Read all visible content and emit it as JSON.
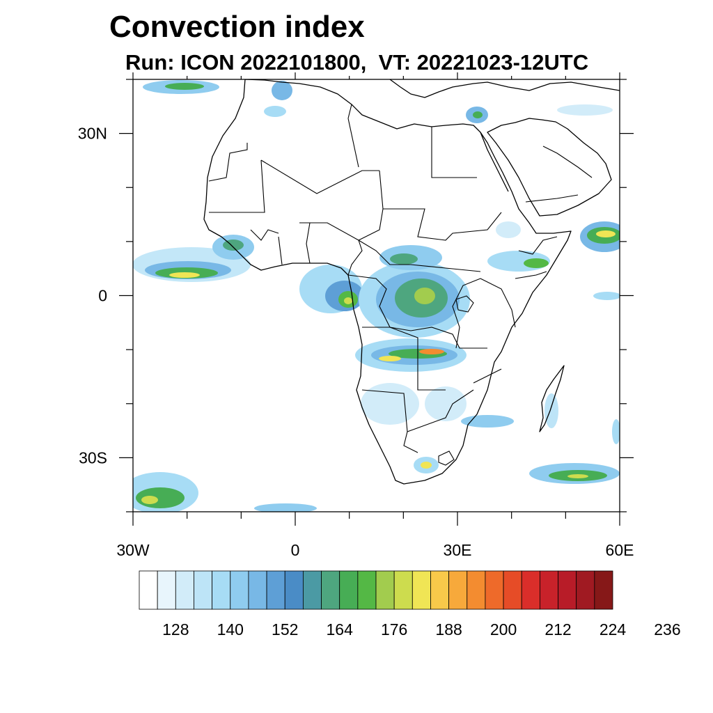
{
  "title": "Convection index",
  "subtitle": {
    "run_label": "Run: ICON 2022101800,",
    "vt_label": "VT: 20221023-12UTC"
  },
  "map": {
    "lon_range": [
      -30,
      60
    ],
    "lat_range": [
      -40,
      40
    ],
    "lon_ticks": [
      {
        "value": -30,
        "label": "30W"
      },
      {
        "value": 0,
        "label": "0"
      },
      {
        "value": 30,
        "label": "30E"
      },
      {
        "value": 60,
        "label": "60E"
      }
    ],
    "lat_ticks": [
      {
        "value": 30,
        "label": "30N"
      },
      {
        "value": 0,
        "label": "0"
      },
      {
        "value": -30,
        "label": "30S"
      }
    ]
  },
  "colorbar": {
    "colors": [
      "#ffffff",
      "#e8f5fc",
      "#d2ecf9",
      "#bde4f7",
      "#a7dcf5",
      "#8fccef",
      "#78b8e6",
      "#5e9fd6",
      "#4a8cc6",
      "#4b9aa4",
      "#4ea67f",
      "#47ad55",
      "#54b845",
      "#a2cc4e",
      "#cddc4e",
      "#f0e555",
      "#f8c94a",
      "#f7a93b",
      "#f38c30",
      "#ee6a2a",
      "#e64c27",
      "#da2e2a",
      "#c8222a",
      "#b81c28",
      "#a01a22",
      "#861818"
    ],
    "tick_labels": [
      "128",
      "140",
      "152",
      "164",
      "176",
      "188",
      "200",
      "212",
      "224",
      "236"
    ]
  }
}
